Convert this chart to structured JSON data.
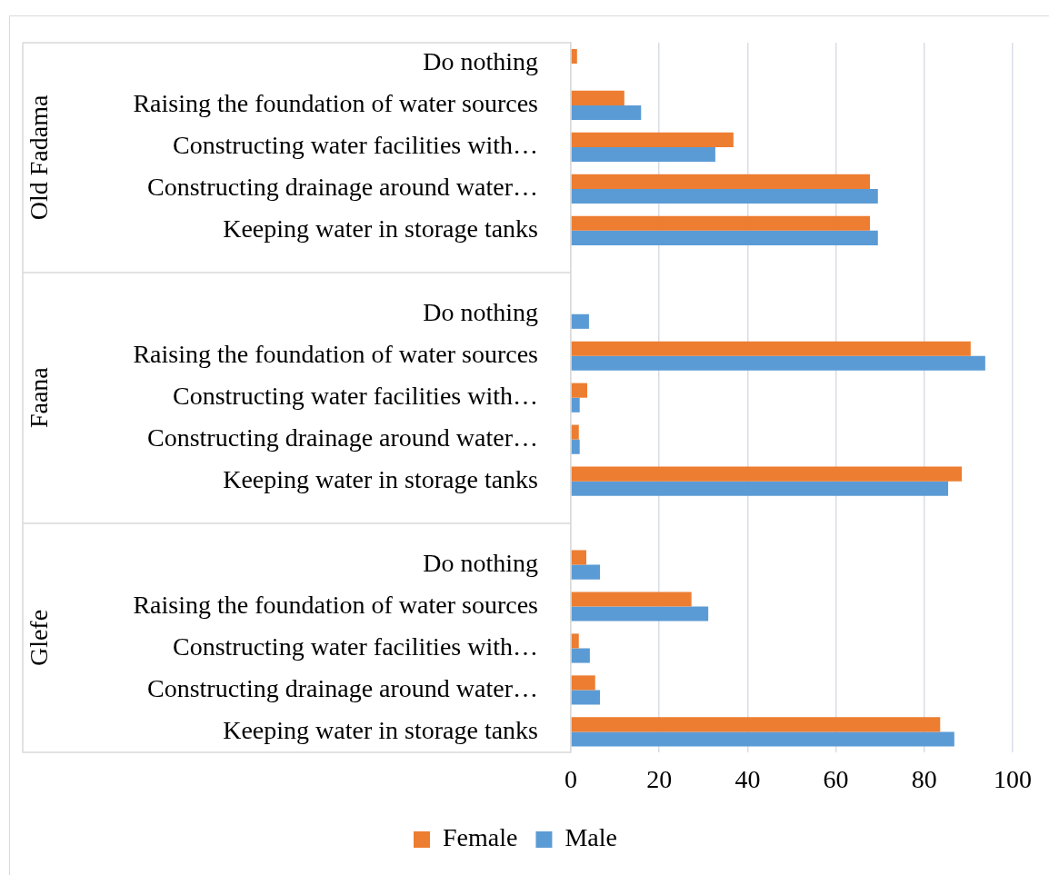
{
  "chart_data": {
    "type": "bar",
    "orientation": "horizontal",
    "categories": [
      "Do nothing",
      "Raising the foundation of water sources",
      "Constructing water facilities with…",
      "Constructing drainage around water…",
      "Keeping water in storage tanks",
      null,
      "Do nothing",
      "Raising the foundation of water sources",
      "Constructing water facilities with…",
      "Constructing drainage around water…",
      "Keeping water in storage tanks",
      null,
      "Do nothing",
      "Raising the foundation of water sources",
      "Constructing water facilities with…",
      "Constructing drainage around water…",
      "Keeping water in storage tanks"
    ],
    "series": [
      {
        "name": "Female",
        "color": "#ed7d31",
        "values": [
          1.4,
          12.1,
          36.8,
          67.7,
          67.7,
          null,
          0,
          90.5,
          3.7,
          1.8,
          88.5,
          null,
          3.5,
          27.3,
          1.8,
          5.5,
          83.6
        ]
      },
      {
        "name": "Male",
        "color": "#5b9bd5",
        "values": [
          0,
          15.9,
          32.7,
          69.5,
          69.5,
          null,
          4.1,
          93.8,
          2.0,
          2.0,
          85.4,
          null,
          6.6,
          31.1,
          4.3,
          6.6,
          86.8
        ]
      }
    ],
    "xlim": [
      0,
      100
    ],
    "xticks": [
      0,
      20,
      40,
      60,
      80,
      100
    ],
    "annotations": [
      "Old Fadama",
      "Faana",
      "Glefe"
    ],
    "grid": "x",
    "legend": "bottom"
  }
}
